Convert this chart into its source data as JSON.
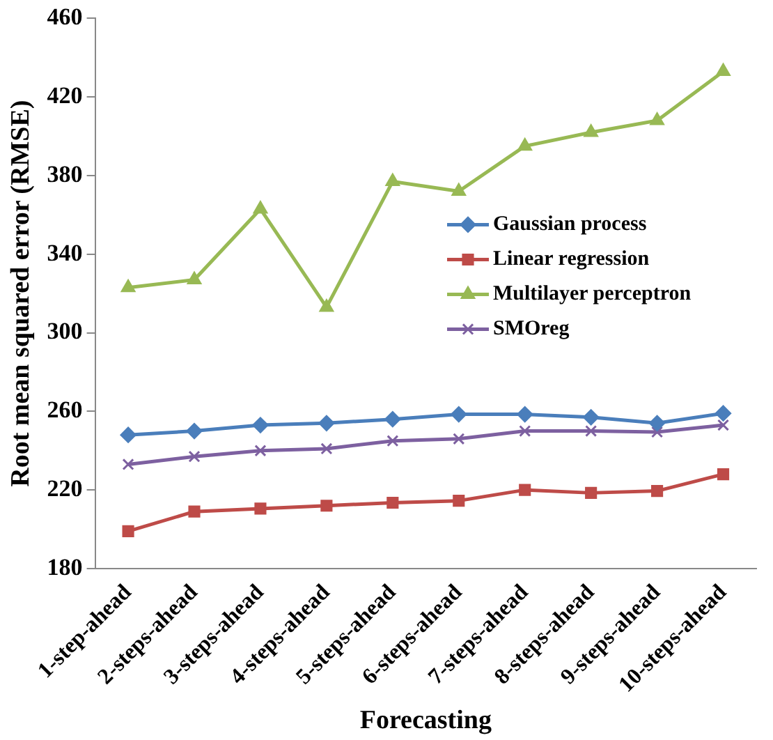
{
  "chart_data": {
    "type": "line",
    "xlabel": "Forecasting",
    "ylabel": "Root mean squared error (RMSE)",
    "categories": [
      "1-step-ahead",
      "2-steps-ahead",
      "3-steps-ahead",
      "4-steps-ahead",
      "5-steps-ahead",
      "6-steps-ahead",
      "7-steps-ahead",
      "8-steps-ahead",
      "9-steps-ahead",
      "10-steps-ahead"
    ],
    "series": [
      {
        "name": "Gaussian process",
        "color": "#4a7ebb",
        "marker": "diamond",
        "values": [
          248,
          250,
          253,
          254,
          256,
          258.5,
          258.5,
          257,
          254,
          259
        ]
      },
      {
        "name": "Linear regression",
        "color": "#be4b48",
        "marker": "square",
        "values": [
          199,
          209,
          210.5,
          212,
          213.5,
          214.5,
          220,
          218.5,
          219.5,
          228
        ]
      },
      {
        "name": "Multilayer perceptron",
        "color": "#98b954",
        "marker": "triangle",
        "values": [
          323,
          327,
          363,
          313,
          377,
          372,
          395,
          402,
          408,
          433
        ]
      },
      {
        "name": "SMOreg",
        "color": "#7d60a0",
        "marker": "cross",
        "values": [
          233,
          237,
          240,
          241,
          245,
          246,
          250,
          250,
          249.5,
          253
        ]
      }
    ],
    "ylim": [
      180,
      460
    ],
    "yticks": [
      180,
      220,
      260,
      300,
      340,
      380,
      420,
      460
    ],
    "grid": false,
    "legend": "right",
    "line_style": "solid"
  }
}
